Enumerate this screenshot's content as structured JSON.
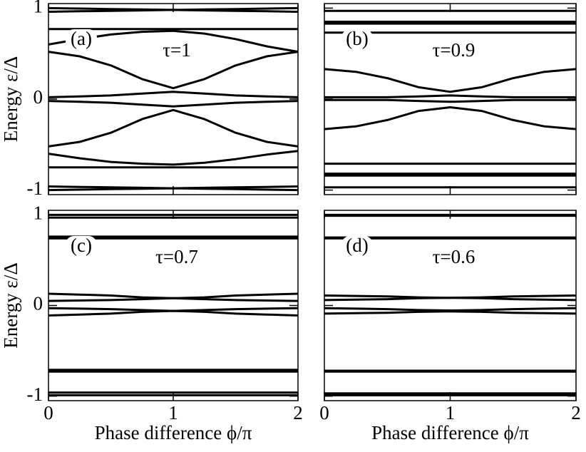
{
  "chart_data": [
    {
      "type": "line",
      "panel_label": "(a)",
      "annotation": "τ=1",
      "ylabel": "Energy ε/Δ",
      "x": [
        0,
        0.25,
        0.5,
        0.75,
        1,
        1.25,
        1.5,
        1.75,
        2
      ],
      "xlim": [
        0,
        2
      ],
      "xticks": [
        0,
        1,
        2
      ],
      "ylim": [
        -1.05,
        1.05
      ],
      "yticks": [
        -1,
        0,
        1
      ],
      "series": [
        {
          "color": "#000000",
          "values": [
            1.0,
            0.995,
            0.99,
            0.985,
            0.98,
            0.985,
            0.99,
            0.995,
            1.0
          ]
        },
        {
          "color": "#000000",
          "values": [
            0.96,
            0.965,
            0.97,
            0.975,
            0.98,
            0.975,
            0.97,
            0.965,
            0.96
          ]
        },
        {
          "color": "#000000",
          "values": [
            0.77,
            0.77,
            0.77,
            0.77,
            0.77,
            0.77,
            0.77,
            0.77,
            0.77
          ]
        },
        {
          "color": "#000000",
          "values": [
            0.6,
            0.66,
            0.71,
            0.74,
            0.75,
            0.72,
            0.66,
            0.58,
            0.52
          ]
        },
        {
          "color": "#000000",
          "values": [
            0.52,
            0.47,
            0.37,
            0.22,
            0.12,
            0.22,
            0.37,
            0.47,
            0.52
          ]
        },
        {
          "color": "#000000",
          "values": [
            0.02,
            0.03,
            0.04,
            0.06,
            0.08,
            0.06,
            0.04,
            0.03,
            0.02
          ]
        },
        {
          "color": "#000000",
          "values": [
            -0.02,
            -0.03,
            -0.04,
            -0.06,
            -0.08,
            -0.06,
            -0.04,
            -0.03,
            -0.02
          ]
        },
        {
          "color": "#000000",
          "values": [
            -0.52,
            -0.47,
            -0.37,
            -0.22,
            -0.12,
            -0.22,
            -0.37,
            -0.47,
            -0.52
          ]
        },
        {
          "color": "#000000",
          "values": [
            -0.6,
            -0.65,
            -0.69,
            -0.71,
            -0.72,
            -0.7,
            -0.66,
            -0.61,
            -0.57
          ]
        },
        {
          "color": "#000000",
          "values": [
            -0.75,
            -0.75,
            -0.75,
            -0.75,
            -0.75,
            -0.75,
            -0.75,
            -0.75,
            -0.75
          ]
        },
        {
          "color": "#000000",
          "values": [
            -0.96,
            -0.965,
            -0.97,
            -0.975,
            -0.98,
            -0.975,
            -0.97,
            -0.965,
            -0.96
          ]
        },
        {
          "color": "#000000",
          "values": [
            -1.0,
            -0.995,
            -0.99,
            -0.985,
            -0.98,
            -0.985,
            -0.99,
            -0.995,
            -1.0
          ]
        }
      ]
    },
    {
      "type": "line",
      "panel_label": "(b)",
      "annotation": "τ=0.9",
      "x": [
        0,
        0.25,
        0.5,
        0.75,
        1,
        1.25,
        1.5,
        1.75,
        2
      ],
      "xlim": [
        0,
        2
      ],
      "xticks": [
        0,
        1,
        2
      ],
      "ylim": [
        -1.05,
        1.05
      ],
      "yticks": [
        -1,
        0,
        1
      ],
      "series": [
        {
          "color": "#000000",
          "values": [
            0.97,
            0.97,
            0.97,
            0.97,
            0.97,
            0.97,
            0.97,
            0.97,
            0.97
          ]
        },
        {
          "color": "#000000",
          "values": [
            0.85,
            0.85,
            0.85,
            0.85,
            0.85,
            0.85,
            0.85,
            0.85,
            0.85
          ]
        },
        {
          "color": "#000000",
          "values": [
            0.83,
            0.83,
            0.83,
            0.83,
            0.83,
            0.83,
            0.83,
            0.83,
            0.83
          ]
        },
        {
          "color": "#000000",
          "values": [
            0.73,
            0.73,
            0.73,
            0.73,
            0.73,
            0.73,
            0.73,
            0.73,
            0.73
          ]
        },
        {
          "color": "#000000",
          "values": [
            0.33,
            0.3,
            0.23,
            0.13,
            0.08,
            0.13,
            0.23,
            0.3,
            0.33
          ]
        },
        {
          "color": "#000000",
          "values": [
            0.02,
            0.02,
            0.02,
            0.03,
            0.04,
            0.03,
            0.02,
            0.02,
            0.02
          ]
        },
        {
          "color": "#000000",
          "values": [
            -0.01,
            -0.01,
            -0.01,
            -0.02,
            -0.03,
            -0.02,
            -0.01,
            -0.01,
            -0.01
          ]
        },
        {
          "color": "#000000",
          "values": [
            -0.33,
            -0.3,
            -0.23,
            -0.13,
            -0.09,
            -0.13,
            -0.23,
            -0.3,
            -0.33
          ]
        },
        {
          "color": "#000000",
          "values": [
            -0.71,
            -0.71,
            -0.71,
            -0.71,
            -0.71,
            -0.71,
            -0.71,
            -0.71,
            -0.71
          ]
        },
        {
          "color": "#000000",
          "values": [
            -0.82,
            -0.82,
            -0.82,
            -0.82,
            -0.82,
            -0.82,
            -0.82,
            -0.82,
            -0.82
          ]
        },
        {
          "color": "#000000",
          "values": [
            -0.84,
            -0.84,
            -0.84,
            -0.84,
            -0.84,
            -0.84,
            -0.84,
            -0.84,
            -0.84
          ]
        },
        {
          "color": "#000000",
          "values": [
            -0.97,
            -0.97,
            -0.97,
            -0.97,
            -0.97,
            -0.97,
            -0.97,
            -0.97,
            -0.97
          ]
        }
      ]
    },
    {
      "type": "line",
      "panel_label": "(c)",
      "annotation": "τ=0.7",
      "ylabel": "Energy ε/Δ",
      "xlabel": "Phase difference ϕ/π",
      "x": [
        0,
        0.25,
        0.5,
        0.75,
        1,
        1.25,
        1.5,
        1.75,
        2
      ],
      "xlim": [
        0,
        2
      ],
      "xticks": [
        0,
        1,
        2
      ],
      "ylim": [
        -1.05,
        1.05
      ],
      "yticks": [
        -1,
        0,
        1
      ],
      "series": [
        {
          "color": "#000000",
          "values": [
            1.0,
            1.0,
            1.0,
            1.0,
            1.0,
            1.0,
            1.0,
            1.0,
            1.0
          ]
        },
        {
          "color": "#000000",
          "values": [
            0.97,
            0.97,
            0.97,
            0.97,
            0.97,
            0.97,
            0.97,
            0.97,
            0.97
          ]
        },
        {
          "color": "#000000",
          "values": [
            0.76,
            0.76,
            0.76,
            0.76,
            0.76,
            0.76,
            0.76,
            0.76,
            0.76
          ]
        },
        {
          "color": "#000000",
          "values": [
            0.74,
            0.74,
            0.74,
            0.74,
            0.74,
            0.74,
            0.74,
            0.74,
            0.74
          ]
        },
        {
          "color": "#000000",
          "values": [
            0.13,
            0.12,
            0.11,
            0.09,
            0.08,
            0.09,
            0.11,
            0.12,
            0.13
          ]
        },
        {
          "color": "#000000",
          "values": [
            0.05,
            0.055,
            0.06,
            0.07,
            0.08,
            0.07,
            0.06,
            0.055,
            0.05
          ]
        },
        {
          "color": "#000000",
          "values": [
            -0.03,
            -0.035,
            -0.04,
            -0.05,
            -0.06,
            -0.05,
            -0.04,
            -0.035,
            -0.03
          ]
        },
        {
          "color": "#000000",
          "values": [
            -0.11,
            -0.1,
            -0.09,
            -0.07,
            -0.06,
            -0.07,
            -0.09,
            -0.1,
            -0.11
          ]
        },
        {
          "color": "#000000",
          "values": [
            -0.71,
            -0.71,
            -0.71,
            -0.71,
            -0.71,
            -0.71,
            -0.71,
            -0.71,
            -0.71
          ]
        },
        {
          "color": "#000000",
          "values": [
            -0.73,
            -0.73,
            -0.73,
            -0.73,
            -0.73,
            -0.73,
            -0.73,
            -0.73,
            -0.73
          ]
        },
        {
          "color": "#000000",
          "values": [
            -0.96,
            -0.96,
            -0.96,
            -0.96,
            -0.96,
            -0.96,
            -0.96,
            -0.96,
            -0.96
          ]
        },
        {
          "color": "#000000",
          "values": [
            -0.99,
            -0.99,
            -0.99,
            -0.99,
            -0.99,
            -0.99,
            -0.99,
            -0.99,
            -0.99
          ]
        }
      ]
    },
    {
      "type": "line",
      "panel_label": "(d)",
      "annotation": "τ=0.6",
      "xlabel": "Phase difference ϕ/π",
      "x": [
        0,
        0.25,
        0.5,
        0.75,
        1,
        1.25,
        1.5,
        1.75,
        2
      ],
      "xlim": [
        0,
        2
      ],
      "xticks": [
        0,
        1,
        2
      ],
      "ylim": [
        -1.05,
        1.05
      ],
      "yticks": [
        -1,
        0,
        1
      ],
      "series": [
        {
          "color": "#000000",
          "values": [
            1.0,
            1.0,
            1.0,
            1.0,
            1.0,
            1.0,
            1.0,
            1.0,
            1.0
          ]
        },
        {
          "color": "#000000",
          "values": [
            0.99,
            0.99,
            0.99,
            0.99,
            0.99,
            0.99,
            0.99,
            0.99,
            0.99
          ]
        },
        {
          "color": "#000000",
          "values": [
            0.75,
            0.75,
            0.75,
            0.75,
            0.75,
            0.75,
            0.75,
            0.75,
            0.75
          ]
        },
        {
          "color": "#000000",
          "values": [
            0.74,
            0.74,
            0.74,
            0.74,
            0.74,
            0.74,
            0.74,
            0.74,
            0.74
          ]
        },
        {
          "color": "#000000",
          "values": [
            0.11,
            0.105,
            0.1,
            0.09,
            0.085,
            0.09,
            0.1,
            0.105,
            0.11
          ]
        },
        {
          "color": "#000000",
          "values": [
            0.06,
            0.065,
            0.07,
            0.08,
            0.085,
            0.08,
            0.07,
            0.065,
            0.06
          ]
        },
        {
          "color": "#000000",
          "values": [
            -0.03,
            -0.035,
            -0.04,
            -0.05,
            -0.055,
            -0.05,
            -0.04,
            -0.035,
            -0.03
          ]
        },
        {
          "color": "#000000",
          "values": [
            -0.09,
            -0.085,
            -0.08,
            -0.07,
            -0.065,
            -0.07,
            -0.08,
            -0.085,
            -0.09
          ]
        },
        {
          "color": "#000000",
          "values": [
            -0.72,
            -0.72,
            -0.72,
            -0.72,
            -0.72,
            -0.72,
            -0.72,
            -0.72,
            -0.72
          ]
        },
        {
          "color": "#000000",
          "values": [
            -0.73,
            -0.73,
            -0.73,
            -0.73,
            -0.73,
            -0.73,
            -0.73,
            -0.73,
            -0.73
          ]
        },
        {
          "color": "#000000",
          "values": [
            -0.97,
            -0.97,
            -0.97,
            -0.97,
            -0.97,
            -0.97,
            -0.97,
            -0.97,
            -0.97
          ]
        },
        {
          "color": "#000000",
          "values": [
            -0.99,
            -0.99,
            -0.99,
            -0.99,
            -0.99,
            -0.99,
            -0.99,
            -0.99,
            -0.99
          ]
        }
      ]
    }
  ]
}
